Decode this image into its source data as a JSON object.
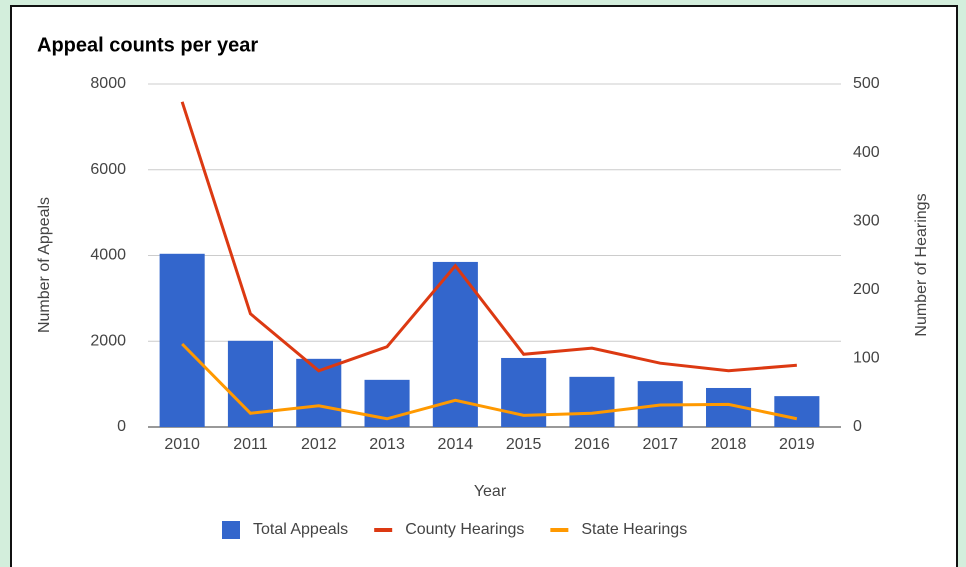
{
  "chart_data": {
    "type": "combo",
    "title": "Appeal counts per year",
    "x_label": "Year",
    "y_label": "Number of Appeals",
    "y2_label": "Number of Hearings",
    "categories": [
      "2010",
      "2011",
      "2012",
      "2013",
      "2014",
      "2015",
      "2016",
      "2017",
      "2018",
      "2019"
    ],
    "series": [
      {
        "name": "Total Appeals",
        "type": "bar",
        "axis": "y",
        "color": "#3366cc",
        "values": [
          4040,
          2010,
          1590,
          1100,
          3850,
          1610,
          1170,
          1070,
          910,
          720
        ]
      },
      {
        "name": "County Hearings",
        "type": "line",
        "axis": "y2",
        "color": "#dc3912",
        "values": [
          474,
          165,
          82,
          117,
          235,
          106,
          115,
          93,
          82,
          90
        ]
      },
      {
        "name": "State Hearings",
        "type": "line",
        "axis": "y2",
        "color": "#ff9900",
        "values": [
          121,
          20,
          31,
          12,
          39,
          17,
          20,
          32,
          33,
          12
        ]
      }
    ],
    "ylim": [
      0,
      8000
    ],
    "yticks": [
      0,
      2000,
      4000,
      6000,
      8000
    ],
    "y2lim": [
      0,
      500
    ],
    "y2ticks": [
      0,
      100,
      200,
      300,
      400,
      500
    ],
    "grid": true,
    "legend": "bottom"
  }
}
